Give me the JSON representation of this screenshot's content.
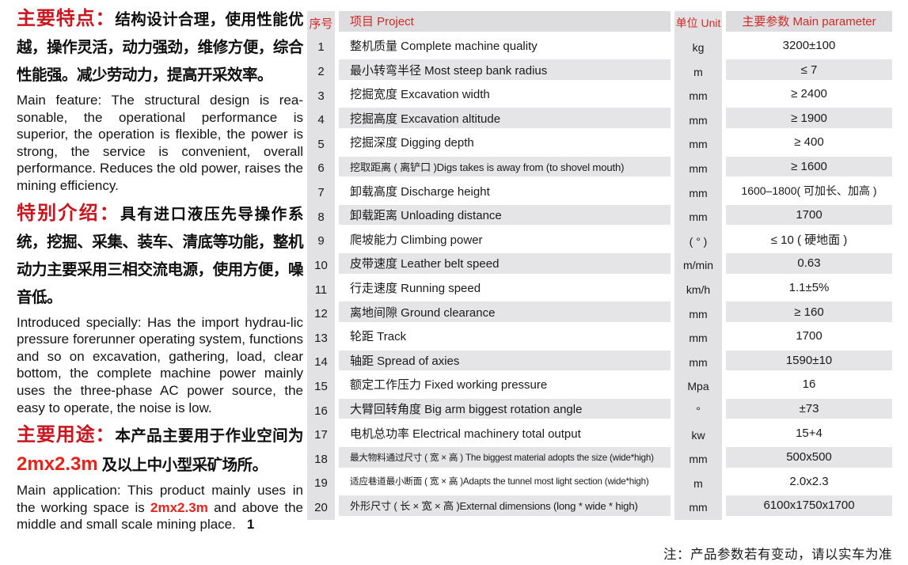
{
  "left_panel": {
    "sections": [
      {
        "heading": "主要特点：",
        "zh": "结构设计合理，使用性能优越，操作灵活，动力强劲，维修方便，综合性能强。减少劳动力，提高开采效率。",
        "en": "Main feature: The structural design is rea-sonable, the operational performance is superior, the operation is flexible, the power is strong, the service is convenient, overall performance. Reduces the old power, raises the mining efficiency."
      },
      {
        "heading": "特别介绍：",
        "zh": "具有进口液压先导操作系统，挖掘、采集、装车、清底等功能，整机动力主要采用三相交流电源，使用方便，噪音低。",
        "en": "Introduced specially: Has the import hydrau-lic pressure forerunner operating system, functions and so on excavation, gathering, load, clear bottom, the complete machine power mainly uses the three-phase AC power source, the easy to operate, the noise is low."
      },
      {
        "heading": "主要用途：",
        "zh_prefix": "本产品主要用于作业空间为 ",
        "zh_red": "2mx2.3m",
        "zh_suffix": " 及以上中小型采矿场所。",
        "en_prefix": "Main application: This product mainly uses in the working space is ",
        "en_red": "2mx2.3m",
        "en_suffix": " and above the middle and small scale mining place.",
        "page_number": "1"
      }
    ]
  },
  "table": {
    "headers": {
      "no": "序号",
      "project": "项目 Project",
      "unit": "单位 Unit",
      "parameter": "主要参数 Main parameter"
    },
    "rows": [
      {
        "no": "1",
        "project": "整机质量 Complete machine quality",
        "unit": "kg",
        "parameter": "3200±100"
      },
      {
        "no": "2",
        "project": "最小转弯半径 Most steep bank radius",
        "unit": "m",
        "parameter": "≤ 7"
      },
      {
        "no": "3",
        "project": "挖掘宽度 Excavation width",
        "unit": "mm",
        "parameter": "≥ 2400"
      },
      {
        "no": "4",
        "project": "挖掘高度 Excavation altitude",
        "unit": "mm",
        "parameter": "≥ 1900"
      },
      {
        "no": "5",
        "project": "挖掘深度 Digging depth",
        "unit": "mm",
        "parameter": "≥ 400"
      },
      {
        "no": "6",
        "project": "挖取距离 ( 离铲口 )Digs takes is away from (to shovel mouth)",
        "unit": "mm",
        "parameter": "≥ 1600"
      },
      {
        "no": "7",
        "project": "卸载高度 Discharge height",
        "unit": "mm",
        "parameter": "1600–1800( 可加长、加高 )"
      },
      {
        "no": "8",
        "project": "卸载距离 Unloading distance",
        "unit": "mm",
        "parameter": "1700"
      },
      {
        "no": "9",
        "project": "爬坡能力 Climbing power",
        "unit": "( ° )",
        "parameter": "≤ 10 ( 硬地面 )"
      },
      {
        "no": "10",
        "project": "皮带速度 Leather belt speed",
        "unit": "m/min",
        "parameter": "0.63"
      },
      {
        "no": "11",
        "project": "行走速度 Running speed",
        "unit": "km/h",
        "parameter": "1.1±5%"
      },
      {
        "no": "12",
        "project": "离地间隙 Ground clearance",
        "unit": "mm",
        "parameter": "≥ 160"
      },
      {
        "no": "13",
        "project": "轮距 Track",
        "unit": "mm",
        "parameter": "1700"
      },
      {
        "no": "14",
        "project": "轴距 Spread of axies",
        "unit": "mm",
        "parameter": "1590±10"
      },
      {
        "no": "15",
        "project": "额定工作压力 Fixed working pressure",
        "unit": "Mpa",
        "parameter": "16"
      },
      {
        "no": "16",
        "project": "大臂回转角度 Big arm biggest rotation angle",
        "unit": "°",
        "parameter": "±73"
      },
      {
        "no": "17",
        "project": "电机总功率 Electrical machinery total output",
        "unit": "kw",
        "parameter": "15+4"
      },
      {
        "no": "18",
        "project": "最大物料通过尺寸 ( 宽 × 高 ) The biggest material adopts the size (wide*high)",
        "unit": "mm",
        "parameter": "500x500"
      },
      {
        "no": "19",
        "project": "适应巷道最小断面 ( 宽 × 高 )Adapts the tunnel most light section (wide*high)",
        "unit": "m",
        "parameter": "2.0x2.3"
      },
      {
        "no": "20",
        "project": "外形尺寸 ( 长 × 宽 × 高 )External dimensions (long * wide * high)",
        "unit": "mm",
        "parameter": "6100x1750x1700"
      }
    ]
  },
  "footnote": "注：产品参数若有变动，请以实车为准",
  "colors": {
    "accent_red": "#c9161f",
    "highlight_red": "#e8231a",
    "table_header_red": "#cf2a28",
    "band_gray": "#e2e2e4",
    "stripe_gray": "#e5e5e7",
    "header_gray": "#dddddf"
  }
}
